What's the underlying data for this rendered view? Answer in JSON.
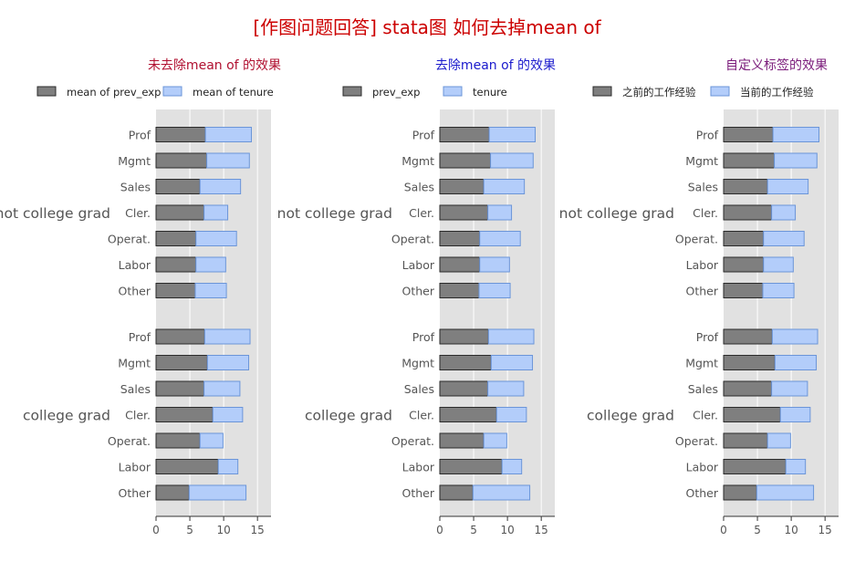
{
  "page_title": "[作图问题回答] stata图 如何去掉mean of",
  "colors": {
    "title": "#cc0000",
    "panel_title_1": "#b01030",
    "panel_title_2": "#1a1acc",
    "panel_title_3": "#7a1a7a",
    "plot_bg": "#e1e1e1",
    "grid": "#ffffff",
    "series_1_fill": "#7f7f7f",
    "series_1_edge": "#2b2b2b",
    "series_2_fill": "#b3cdfa",
    "series_2_edge": "#6b95d8",
    "label_text": "#555555"
  },
  "chart_data": [
    {
      "type": "bar",
      "orientation": "horizontal",
      "stacked": true,
      "title": "未去除mean of 的效果",
      "legend": {
        "position": "top",
        "labels": [
          "mean of prev_exp",
          "mean of tenure"
        ]
      },
      "groups": [
        "not college grad",
        "college grad"
      ],
      "categories": [
        "Prof",
        "Mgmt",
        "Sales",
        "Cler.",
        "Operat.",
        "Labor",
        "Other"
      ],
      "series": [
        {
          "name": "mean of prev_exp",
          "values": [
            [
              7.3,
              7.5,
              6.5,
              7.1,
              5.9,
              5.9,
              5.8
            ],
            [
              7.2,
              7.6,
              7.1,
              8.4,
              6.5,
              9.2,
              4.9
            ]
          ]
        },
        {
          "name": "mean of tenure",
          "values": [
            [
              6.8,
              6.3,
              6.0,
              3.5,
              6.0,
              4.4,
              4.6
            ],
            [
              6.7,
              6.1,
              5.3,
              4.4,
              3.4,
              2.9,
              8.4
            ]
          ]
        }
      ],
      "xlim": [
        0,
        17
      ],
      "xticks": [
        0,
        5,
        10,
        15
      ],
      "grid": true
    },
    {
      "type": "bar",
      "orientation": "horizontal",
      "stacked": true,
      "title": "去除mean of 的效果",
      "legend": {
        "position": "top",
        "labels": [
          "prev_exp",
          "tenure"
        ]
      },
      "groups": [
        "not college grad",
        "college grad"
      ],
      "categories": [
        "Prof",
        "Mgmt",
        "Sales",
        "Cler.",
        "Operat.",
        "Labor",
        "Other"
      ],
      "series": [
        {
          "name": "prev_exp",
          "values": [
            [
              7.3,
              7.5,
              6.5,
              7.1,
              5.9,
              5.9,
              5.8
            ],
            [
              7.2,
              7.6,
              7.1,
              8.4,
              6.5,
              9.2,
              4.9
            ]
          ]
        },
        {
          "name": "tenure",
          "values": [
            [
              6.8,
              6.3,
              6.0,
              3.5,
              6.0,
              4.4,
              4.6
            ],
            [
              6.7,
              6.1,
              5.3,
              4.4,
              3.4,
              2.9,
              8.4
            ]
          ]
        }
      ],
      "xlim": [
        0,
        17
      ],
      "xticks": [
        0,
        5,
        10,
        15
      ],
      "grid": true
    },
    {
      "type": "bar",
      "orientation": "horizontal",
      "stacked": true,
      "title": "自定义标签的效果",
      "legend": {
        "position": "top",
        "labels": [
          "之前的工作经验",
          "当前的工作经验"
        ]
      },
      "groups": [
        "not college grad",
        "college grad"
      ],
      "categories": [
        "Prof",
        "Mgmt",
        "Sales",
        "Cler.",
        "Operat.",
        "Labor",
        "Other"
      ],
      "series": [
        {
          "name": "之前的工作经验",
          "values": [
            [
              7.3,
              7.5,
              6.5,
              7.1,
              5.9,
              5.9,
              5.8
            ],
            [
              7.2,
              7.6,
              7.1,
              8.4,
              6.5,
              9.2,
              4.9
            ]
          ]
        },
        {
          "name": "当前的工作经验",
          "values": [
            [
              6.8,
              6.3,
              6.0,
              3.5,
              6.0,
              4.4,
              4.6
            ],
            [
              6.7,
              6.1,
              5.3,
              4.4,
              3.4,
              2.9,
              8.4
            ]
          ]
        }
      ],
      "xlim": [
        0,
        17
      ],
      "xticks": [
        0,
        5,
        10,
        15
      ],
      "grid": true
    }
  ]
}
